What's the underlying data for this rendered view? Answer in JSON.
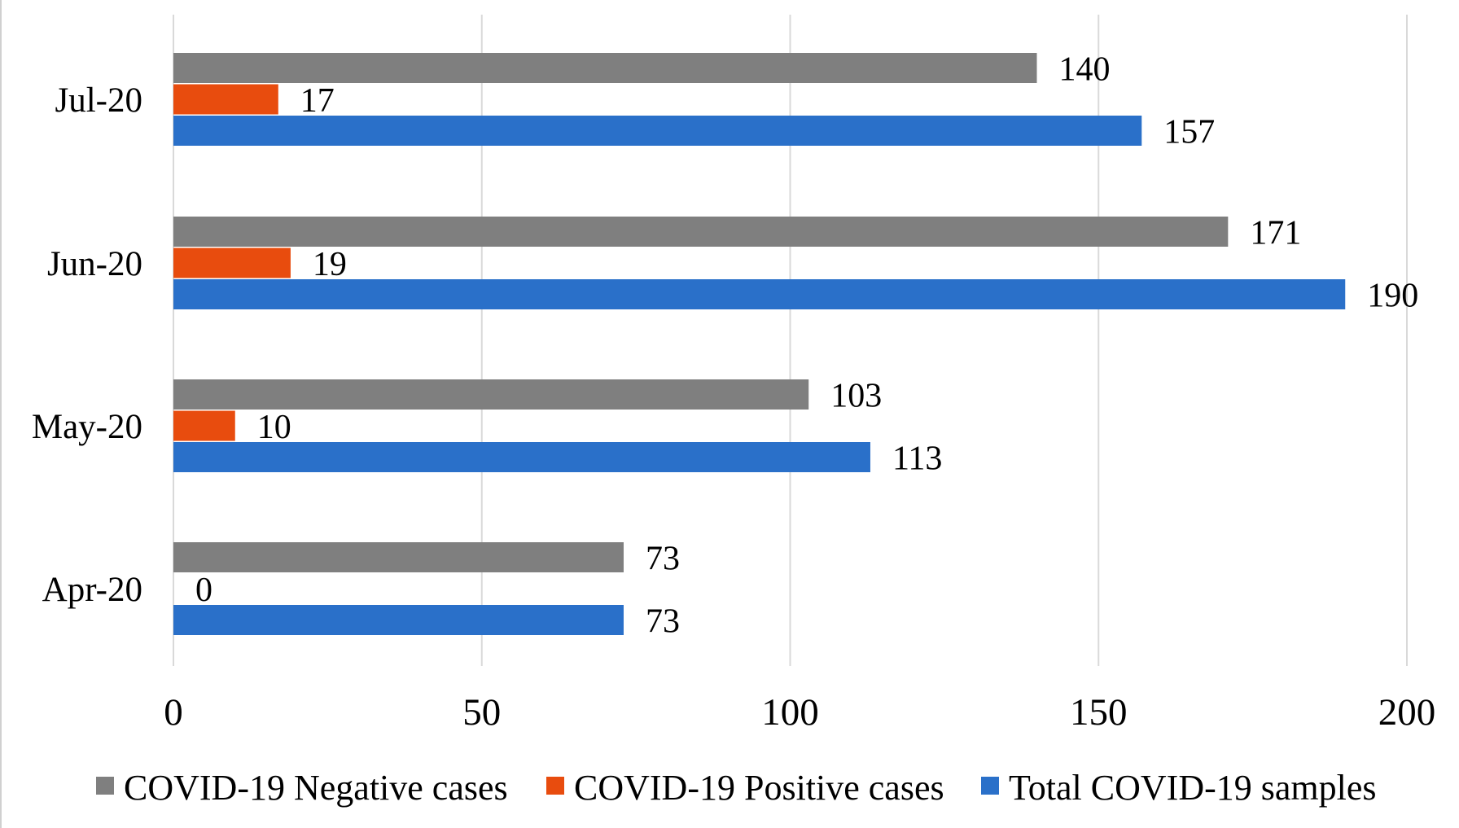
{
  "chart_data": {
    "type": "bar",
    "orientation": "horizontal",
    "categories": [
      "Apr-20",
      "May-20",
      "Jun-20",
      "Jul-20"
    ],
    "series": [
      {
        "name": "COVID-19 Negative cases",
        "values": [
          73,
          103,
          171,
          140
        ],
        "color": "#7f7f7f"
      },
      {
        "name": "COVID-19 Positive cases",
        "values": [
          0,
          10,
          19,
          17
        ],
        "color": "#e84c0e"
      },
      {
        "name": "Total COVID-19 samples",
        "values": [
          73,
          113,
          190,
          157
        ],
        "color": "#2a70c9"
      }
    ],
    "xlim": [
      0,
      200
    ],
    "x_ticks": [
      "0",
      "50",
      "100",
      "150",
      "200"
    ],
    "title": "",
    "xlabel": "",
    "ylabel": "",
    "grid": "vertical",
    "legend_position": "bottom",
    "data_labels": true
  }
}
